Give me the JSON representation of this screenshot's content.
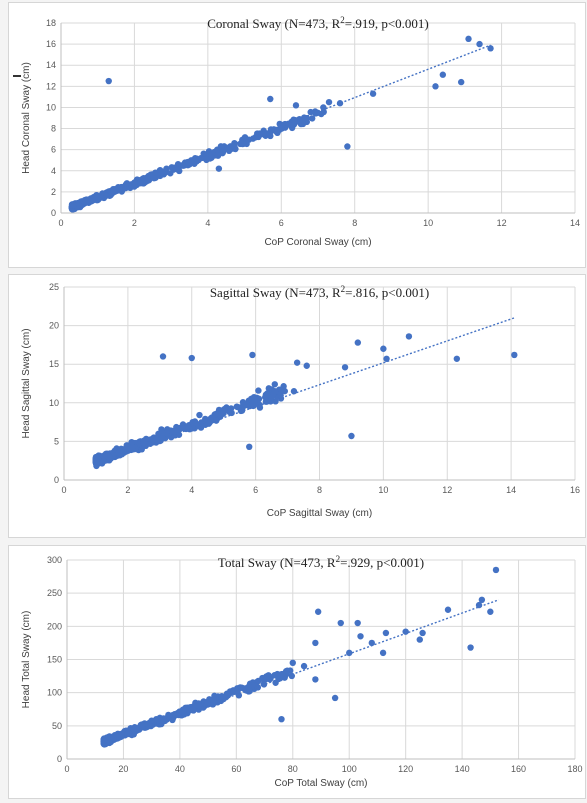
{
  "chart_data": [
    {
      "type": "scatter",
      "title_main": "Coronal Sway (N=473, R",
      "title_sup": "2",
      "title_rest": "=.919, p<0.001)",
      "xlabel": "CoP Coronal Sway (cm)",
      "ylabel": "Head Coronal Sway (cm)",
      "xlim": [
        0,
        14
      ],
      "ylim": [
        0,
        18
      ],
      "xticks": [
        0,
        2,
        4,
        6,
        8,
        10,
        12,
        14
      ],
      "yticks": [
        0,
        2,
        4,
        6,
        8,
        10,
        12,
        14,
        16,
        18
      ],
      "trendline": [
        [
          0.3,
          0.6
        ],
        [
          11.7,
          15.9
        ]
      ],
      "grid": true,
      "point_color": "#4472C4",
      "outliers": [
        [
          1.3,
          12.5
        ],
        [
          7.8,
          6.3
        ],
        [
          8.5,
          11.3
        ],
        [
          10.2,
          12.0
        ],
        [
          10.4,
          13.1
        ],
        [
          10.9,
          12.4
        ],
        [
          11.1,
          16.5
        ],
        [
          11.4,
          16.0
        ],
        [
          11.7,
          15.6
        ],
        [
          4.3,
          4.2
        ],
        [
          5.7,
          10.8
        ],
        [
          6.4,
          10.2
        ],
        [
          7.3,
          10.5
        ],
        [
          7.6,
          10.4
        ]
      ],
      "cloud": {
        "count": 459,
        "xmin": 0.3,
        "xmax": 7.2,
        "slope": 1.32,
        "intercept": 0.15,
        "noise": 0.55,
        "skew": 2.8
      }
    },
    {
      "type": "scatter",
      "title_main": "Sagittal Sway (N=473, R",
      "title_sup": "2",
      "title_rest": "=.816, p<0.001)",
      "xlabel": "CoP Sagittal Sway (cm)",
      "ylabel": "Head Sagittal Sway (cm)",
      "xlim": [
        0,
        16
      ],
      "ylim": [
        0,
        25
      ],
      "xticks": [
        0,
        2,
        4,
        6,
        8,
        10,
        12,
        14,
        16
      ],
      "yticks": [
        0,
        5,
        10,
        15,
        20,
        25
      ],
      "trendline": [
        [
          1.0,
          2.4
        ],
        [
          14.1,
          21.0
        ]
      ],
      "grid": true,
      "point_color": "#4472C4",
      "outliers": [
        [
          3.1,
          16.0
        ],
        [
          4.0,
          15.8
        ],
        [
          5.9,
          16.2
        ],
        [
          9.0,
          5.7
        ],
        [
          9.2,
          17.8
        ],
        [
          10.0,
          17.0
        ],
        [
          10.1,
          15.7
        ],
        [
          10.8,
          18.6
        ],
        [
          12.3,
          15.7
        ],
        [
          14.1,
          16.2
        ],
        [
          5.8,
          4.3
        ],
        [
          7.3,
          15.2
        ],
        [
          7.6,
          14.8
        ],
        [
          8.8,
          14.6
        ],
        [
          6.6,
          12.4
        ],
        [
          7.2,
          11.5
        ]
      ],
      "cloud": {
        "count": 457,
        "xmin": 1.0,
        "xmax": 7.0,
        "slope": 1.55,
        "intercept": 0.9,
        "noise": 1.1,
        "skew": 2.5
      }
    },
    {
      "type": "scatter",
      "title_main": "Total Sway (N=473, R",
      "title_sup": "2",
      "title_rest": "=.929, p<0.001)",
      "xlabel": "CoP Total Sway (cm)",
      "ylabel": "Head Total Sway (cm)",
      "xlim": [
        0,
        180
      ],
      "ylim": [
        0,
        300
      ],
      "xticks": [
        0,
        20,
        40,
        60,
        80,
        100,
        120,
        140,
        160,
        180
      ],
      "yticks": [
        0,
        50,
        100,
        150,
        200,
        250,
        300
      ],
      "trendline": [
        [
          13,
          25
        ],
        [
          153,
          240
        ]
      ],
      "grid": true,
      "point_color": "#4472C4",
      "outliers": [
        [
          76,
          60
        ],
        [
          88,
          120
        ],
        [
          89,
          222
        ],
        [
          95,
          92
        ],
        [
          97,
          205
        ],
        [
          100,
          160
        ],
        [
          103,
          205
        ],
        [
          104,
          185
        ],
        [
          108,
          175
        ],
        [
          112,
          160
        ],
        [
          113,
          190
        ],
        [
          120,
          192
        ],
        [
          125,
          180
        ],
        [
          126,
          190
        ],
        [
          135,
          225
        ],
        [
          143,
          168
        ],
        [
          146,
          232
        ],
        [
          147,
          240
        ],
        [
          150,
          222
        ],
        [
          152,
          285
        ],
        [
          88,
          175
        ],
        [
          80,
          145
        ],
        [
          84,
          140
        ]
      ],
      "cloud": {
        "count": 450,
        "xmin": 13,
        "xmax": 80,
        "slope": 1.6,
        "intercept": 5,
        "noise": 9,
        "skew": 2.6
      }
    }
  ]
}
